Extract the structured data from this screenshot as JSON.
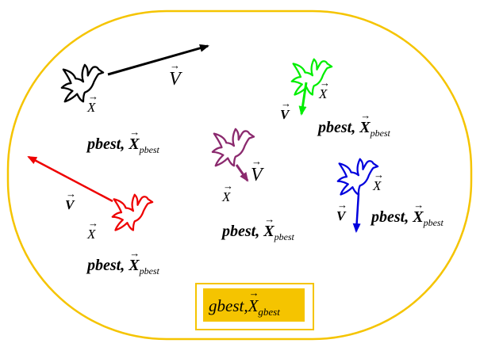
{
  "labels": {
    "pbest": "pbest",
    "x_symbol": "X",
    "v_symbol": "V",
    "v_lower": "V",
    "pbest_sub": "pbest",
    "gbest": "gbest",
    "gbest_sub": "gbest"
  },
  "colors": {
    "swarm_boundary": "#f5c400",
    "gbest_fill": "#f5c400",
    "particle_black": "#000000",
    "particle_green": "#00ee00",
    "particle_purple": "#8b2a6e",
    "particle_blue": "#0000dd",
    "particle_red": "#ee0000"
  },
  "icons": [
    "bird-icon"
  ]
}
